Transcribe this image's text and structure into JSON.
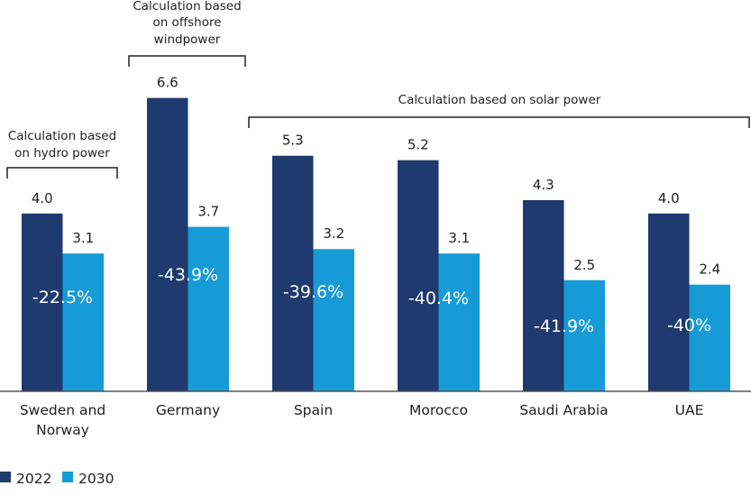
{
  "chart_data": {
    "type": "bar",
    "categories": [
      "Sweden and Norway",
      "Germany",
      "Spain",
      "Morocco",
      "Saudi Arabia",
      "UAE"
    ],
    "series": [
      {
        "name": "2022",
        "values": [
          4.0,
          6.6,
          5.3,
          5.2,
          4.3,
          4.0
        ],
        "labels": [
          "4.0",
          "6.6",
          "5.3",
          "5.2",
          "4.3",
          "4.0"
        ],
        "color": "#1e3a6e"
      },
      {
        "name": "2030",
        "values": [
          3.1,
          3.7,
          3.2,
          3.1,
          2.5,
          2.4
        ],
        "labels": [
          "3.1",
          "3.7",
          "3.2",
          "3.1",
          "2.5",
          "2.4"
        ],
        "color": "#179bd7"
      }
    ],
    "change_labels": [
      "-22.5%",
      "-43.9%",
      "-39.6%",
      "-40.4%",
      "-41.9%",
      "-40%"
    ],
    "annotations": [
      {
        "text": [
          "Calculation based",
          "on hydro power"
        ],
        "categories": [
          "Sweden and Norway"
        ]
      },
      {
        "text": [
          "Calculation based",
          "on offshore",
          "windpower"
        ],
        "categories": [
          "Germany"
        ]
      },
      {
        "text": [
          "Calculation based on solar power"
        ],
        "categories": [
          "Spain",
          "Morocco",
          "Saudi Arabia",
          "UAE"
        ]
      }
    ],
    "legend": {
      "position": "bottom-left",
      "entries": [
        "2022",
        "2030"
      ]
    },
    "ylim": [
      0,
      7
    ],
    "grid": false,
    "xlabel": "",
    "ylabel": ""
  }
}
